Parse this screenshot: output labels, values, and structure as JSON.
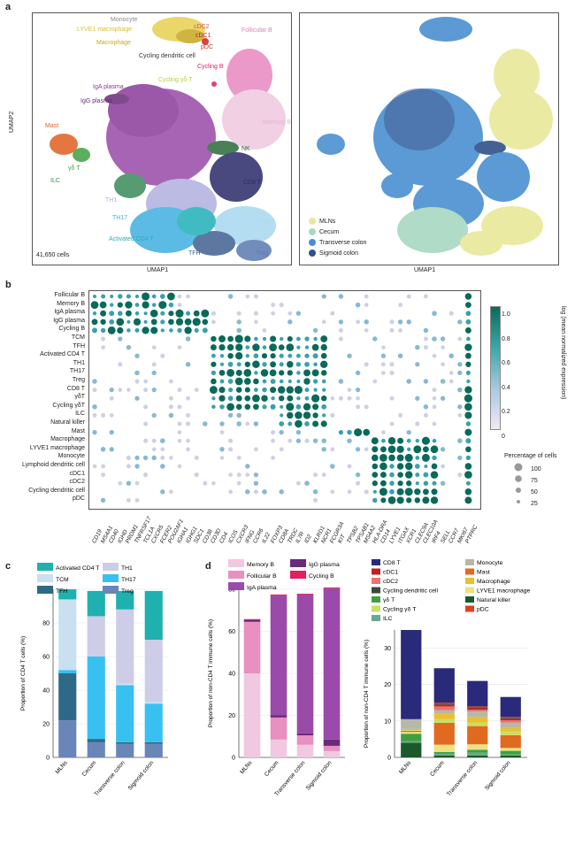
{
  "panels": {
    "a": "a",
    "b": "b",
    "c": "c",
    "d": "d"
  },
  "umap": {
    "xlabel": "UMAP1",
    "ylabel": "UMAP2",
    "cell_count": "41,650 cells",
    "labels": [
      {
        "text": "Monocyte",
        "color": "#8a8a8a"
      },
      {
        "text": "LYVE1 macrophage",
        "color": "#d8c028"
      },
      {
        "text": "cDC2",
        "color": "#e05050"
      },
      {
        "text": "cDC1",
        "color": "#d42020"
      },
      {
        "text": "Macrophage",
        "color": "#c8a820"
      },
      {
        "text": "pDC",
        "color": "#e03020"
      },
      {
        "text": "Cycling dendritic cell",
        "color": "#333"
      },
      {
        "text": "Follicular B",
        "color": "#e080b8"
      },
      {
        "text": "Cycling B",
        "color": "#e02060"
      },
      {
        "text": "Cycling γδ T",
        "color": "#b8d040"
      },
      {
        "text": "IgA plasma",
        "color": "#8a3a9a"
      },
      {
        "text": "IgG plasma",
        "color": "#6a2a7a"
      },
      {
        "text": "Memory B",
        "color": "#e8b0d0"
      },
      {
        "text": "Mast",
        "color": "#e06020"
      },
      {
        "text": "NK",
        "color": "#2a6a3a"
      },
      {
        "text": "γδ T",
        "color": "#40a040"
      },
      {
        "text": "ILC",
        "color": "#3a8a5a"
      },
      {
        "text": "CD8 T",
        "color": "#2a2a6a"
      },
      {
        "text": "TH1",
        "color": "#b0b0e0"
      },
      {
        "text": "TH17",
        "color": "#40b0e0"
      },
      {
        "text": "Activated CD4 T",
        "color": "#20b0b8"
      },
      {
        "text": "TCM",
        "color": "#a8d8f0"
      },
      {
        "text": "TFH",
        "color": "#406090"
      },
      {
        "text": "Treg",
        "color": "#5a7ab0"
      }
    ],
    "tissue_legend": [
      {
        "name": "MLNs",
        "color": "#e8e89a"
      },
      {
        "name": "Cecum",
        "color": "#a8d8c0"
      },
      {
        "name": "Transverse colon",
        "color": "#4a90d0"
      },
      {
        "name": "Sigmoid colon",
        "color": "#30508a"
      }
    ]
  },
  "dotplot": {
    "rows": [
      "Follicular B",
      "Memory B",
      "IgA plasma",
      "IgG plasma",
      "Cycling B",
      "TCM",
      "TFH",
      "Activated CD4 T",
      "TH1",
      "TH17",
      "Treg",
      "CD8 T",
      "γδT",
      "Cycling γδT",
      "ILC",
      "Natural killer",
      "Mast",
      "Macrophage",
      "LYVE1 macrophage",
      "Monocyte",
      "Lymphoid dendritic cell",
      "cDC1",
      "cDC2",
      "Cycling dendritic cell",
      "pDC"
    ],
    "genes": [
      "CD19",
      "MS4A1",
      "CD40",
      "IGHD",
      "PRDM1",
      "TNFRSF17",
      "TCL1A",
      "CXCR5",
      "FCER2",
      "POU2AF1",
      "IGHA1",
      "IGHG1",
      "SDC1",
      "CD38",
      "CD3D",
      "CD4",
      "ICOS",
      "CXCR3",
      "IFNG",
      "CCR6",
      "IL22",
      "FOXP3",
      "CD8A",
      "TRDC",
      "IL7R",
      "ID2",
      "KLRD1",
      "NCR1",
      "FCGR3A",
      "KIT",
      "TPSB2",
      "TPSAB1",
      "MS4A2",
      "HLA-DRA",
      "CD14",
      "LYVE1",
      "ITGAX",
      "XCR1",
      "CLEC9A",
      "CLEC10A",
      "IRF4",
      "SELL",
      "CCR7",
      "MKI67",
      "PTPRC"
    ],
    "colorbar": {
      "title": "log (mean normalized expression)",
      "ticks": [
        "1.0",
        "0.8",
        "0.6",
        "0.4",
        "0.2",
        "0"
      ],
      "low": "#f0eaf4",
      "high": "#0a6a5a"
    },
    "size_legend": {
      "title": "Percentage of cells",
      "ticks": [
        "100",
        "75",
        "50",
        "25"
      ]
    }
  },
  "chart_c": {
    "ylabel": "Proportion of CD4 T cells (%)",
    "categories": [
      "MLNs",
      "Cecum",
      "Transverse colon",
      "Sigmoid colon"
    ],
    "yticks": [
      "0",
      "20",
      "40",
      "60",
      "80",
      "100"
    ],
    "ylim": [
      0,
      100
    ],
    "legend": [
      {
        "name": "Activated CD4 T",
        "color": "#1fb0b0"
      },
      {
        "name": "TH1",
        "color": "#cdcde8"
      },
      {
        "name": "TCM",
        "color": "#c8e0f0"
      },
      {
        "name": "TH17",
        "color": "#38c0f0"
      },
      {
        "name": "TFH",
        "color": "#2e6a88"
      },
      {
        "name": "Treg",
        "color": "#6a86b8"
      }
    ]
  },
  "chart_d1": {
    "ylabel": "Proportion of non-CD4 T immune cells (%)",
    "categories": [
      "MLNs",
      "Cecum",
      "Transverse colon",
      "Sigmoid colon"
    ],
    "yticks": [
      "0",
      "20",
      "40",
      "60",
      "80"
    ],
    "ylim": [
      0,
      80
    ],
    "legend": [
      {
        "name": "Memory B",
        "color": "#f0c8e0"
      },
      {
        "name": "IgG plasma",
        "color": "#6a2a7a"
      },
      {
        "name": "Follicular B",
        "color": "#e890c0"
      },
      {
        "name": "Cycling B",
        "color": "#e02060"
      },
      {
        "name": "IgA plasma",
        "color": "#9a4aa8"
      }
    ]
  },
  "chart_d2": {
    "ylabel": "Proportion of non-CD4 T immune cells (%)",
    "categories": [
      "MLNs",
      "Cecum",
      "Transverse colon",
      "Sigmoid colon"
    ],
    "yticks": [
      "0",
      "10",
      "20",
      "30"
    ],
    "ylim": [
      0,
      35
    ],
    "legend": [
      {
        "name": "CD8 T",
        "color": "#2a2a7a"
      },
      {
        "name": "Monocyte",
        "color": "#b8b8a8"
      },
      {
        "name": "cDC1",
        "color": "#c02020"
      },
      {
        "name": "Mast",
        "color": "#e06a20"
      },
      {
        "name": "cDC2",
        "color": "#f07070"
      },
      {
        "name": "Macrophage",
        "color": "#e8c030"
      },
      {
        "name": "Cycling dendritic cell",
        "color": "#3a4a3a"
      },
      {
        "name": "LYVE1 macrophage",
        "color": "#f0e080"
      },
      {
        "name": "γδ T",
        "color": "#40a040"
      },
      {
        "name": "Natural killer",
        "color": "#1a5a2a"
      },
      {
        "name": "Cycling γδ T",
        "color": "#c8e060"
      },
      {
        "name": "pDC",
        "color": "#e04020"
      },
      {
        "name": "ILC",
        "color": "#6aa890"
      }
    ]
  },
  "chart_data": [
    {
      "type": "bar",
      "stacked": true,
      "ylabel": "Proportion of CD4 T cells (%)",
      "categories": [
        "MLNs",
        "Cecum",
        "Transverse colon",
        "Sigmoid colon"
      ],
      "ylim": [
        0,
        100
      ],
      "series": [
        {
          "name": "Treg",
          "values": [
            22,
            9,
            8,
            8
          ]
        },
        {
          "name": "TFH",
          "values": [
            28,
            2,
            1,
            1
          ]
        },
        {
          "name": "TH17",
          "values": [
            2,
            49,
            34,
            23
          ]
        },
        {
          "name": "TCM",
          "values": [
            42,
            0,
            1,
            1
          ]
        },
        {
          "name": "TH1",
          "values": [
            0,
            24,
            44,
            37
          ]
        },
        {
          "name": "Activated CD4 T",
          "values": [
            6,
            15,
            11,
            29
          ]
        }
      ]
    },
    {
      "type": "bar",
      "stacked": true,
      "ylabel": "Proportion of non-CD4 T immune cells (%)",
      "categories": [
        "MLNs",
        "Cecum",
        "Transverse colon",
        "Sigmoid colon"
      ],
      "ylim": [
        0,
        80
      ],
      "series": [
        {
          "name": "Memory B",
          "values": [
            40,
            8.5,
            6,
            3
          ]
        },
        {
          "name": "Follicular B",
          "values": [
            24.5,
            10.5,
            4.5,
            2.5
          ]
        },
        {
          "name": "IgG plasma",
          "values": [
            1,
            1,
            1,
            3
          ]
        },
        {
          "name": "IgA plasma",
          "values": [
            0,
            57,
            66,
            72
          ]
        },
        {
          "name": "Cycling B",
          "values": [
            0.3,
            0.5,
            0.4,
            0.4
          ]
        }
      ]
    },
    {
      "type": "bar",
      "stacked": true,
      "ylabel": "Proportion of non-CD4 T immune cells (%)",
      "categories": [
        "MLNs",
        "Cecum",
        "Transverse colon",
        "Sigmoid colon"
      ],
      "ylim": [
        0,
        35
      ],
      "series": [
        {
          "name": "Natural killer",
          "values": [
            4,
            0.5,
            0.5,
            0.5
          ]
        },
        {
          "name": "ILC",
          "values": [
            0.5,
            0.5,
            0.8,
            0.3
          ]
        },
        {
          "name": "γδ T",
          "values": [
            2,
            0.5,
            0.8,
            1
          ]
        },
        {
          "name": "LYVE1 macrophage",
          "values": [
            0.5,
            2,
            1.5,
            0.8
          ]
        },
        {
          "name": "Mast",
          "values": [
            0.3,
            6,
            5,
            3.5
          ]
        },
        {
          "name": "Cycling γδ T",
          "values": [
            0.2,
            1,
            1,
            1
          ]
        },
        {
          "name": "Macrophage",
          "values": [
            0.3,
            1.5,
            1.5,
            1
          ]
        },
        {
          "name": "Monocyte",
          "values": [
            2.7,
            1,
            1.5,
            1.5
          ]
        },
        {
          "name": "cDC2",
          "values": [
            0,
            1,
            0.5,
            0.6
          ]
        },
        {
          "name": "cDC1",
          "values": [
            0,
            0.5,
            0.4,
            0.4
          ]
        },
        {
          "name": "Cycling dendritic cell",
          "values": [
            0,
            0.3,
            0.3,
            0.3
          ]
        },
        {
          "name": "pDC",
          "values": [
            0,
            0.2,
            0.2,
            0.2
          ]
        },
        {
          "name": "CD8 T",
          "values": [
            24.5,
            9.5,
            7,
            5.5
          ]
        }
      ]
    }
  ]
}
